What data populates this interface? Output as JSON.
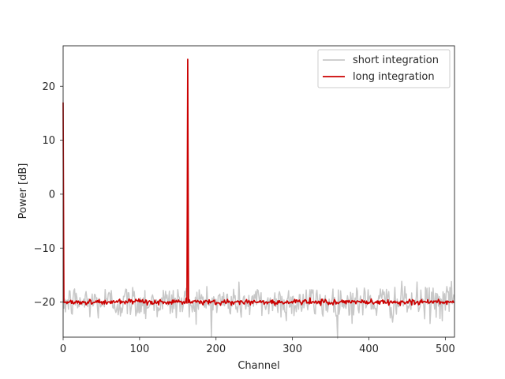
{
  "chart_data": {
    "type": "line",
    "title": "",
    "xlabel": "Channel",
    "ylabel": "Power [dB]",
    "xlim": [
      0,
      512
    ],
    "ylim": [
      -26.5,
      27.5
    ],
    "xticks": [
      0,
      100,
      200,
      300,
      400,
      500
    ],
    "yticks": [
      -20,
      -10,
      0,
      10,
      20
    ],
    "grid": false,
    "legend_position": "top-right",
    "noise_floor_db": -20,
    "peaks": [
      {
        "channel": 0,
        "short_db": 17,
        "long_db": 17
      },
      {
        "channel": 163,
        "short_db": 25,
        "long_db": 25
      }
    ],
    "series": [
      {
        "name": "short integration",
        "color": "#c8c8c8",
        "style": "noisy",
        "noise_spread_db": 1.6
      },
      {
        "name": "long integration",
        "color": "#cc0000",
        "style": "smooth",
        "noise_spread_db": 0.25
      }
    ]
  }
}
